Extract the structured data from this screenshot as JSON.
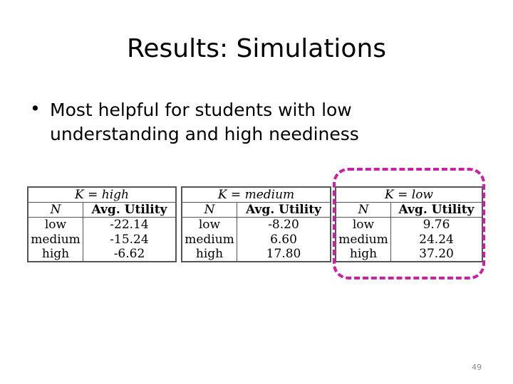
{
  "slide": {
    "title": "Results: Simulations",
    "bullet": "Most helpful for students with low understanding and high neediness",
    "page_number": "49"
  },
  "tables": [
    {
      "caption": "K = high",
      "col_headers": [
        "N",
        "Avg. Utility"
      ],
      "rows": [
        [
          "low",
          "-22.14"
        ],
        [
          "medium",
          "-15.24"
        ],
        [
          "high",
          "-6.62"
        ]
      ]
    },
    {
      "caption": "K = medium",
      "col_headers": [
        "N",
        "Avg. Utility"
      ],
      "rows": [
        [
          "low",
          "-8.20"
        ],
        [
          "medium",
          "6.60"
        ],
        [
          "high",
          "17.80"
        ]
      ]
    },
    {
      "caption": "K = low",
      "col_headers": [
        "N",
        "Avg. Utility"
      ],
      "rows": [
        [
          "low",
          "9.76"
        ],
        [
          "medium",
          "24.24"
        ],
        [
          "high",
          "37.20"
        ]
      ]
    }
  ],
  "colors": {
    "highlight": "#cc1fa3",
    "table_border": "#555555"
  }
}
